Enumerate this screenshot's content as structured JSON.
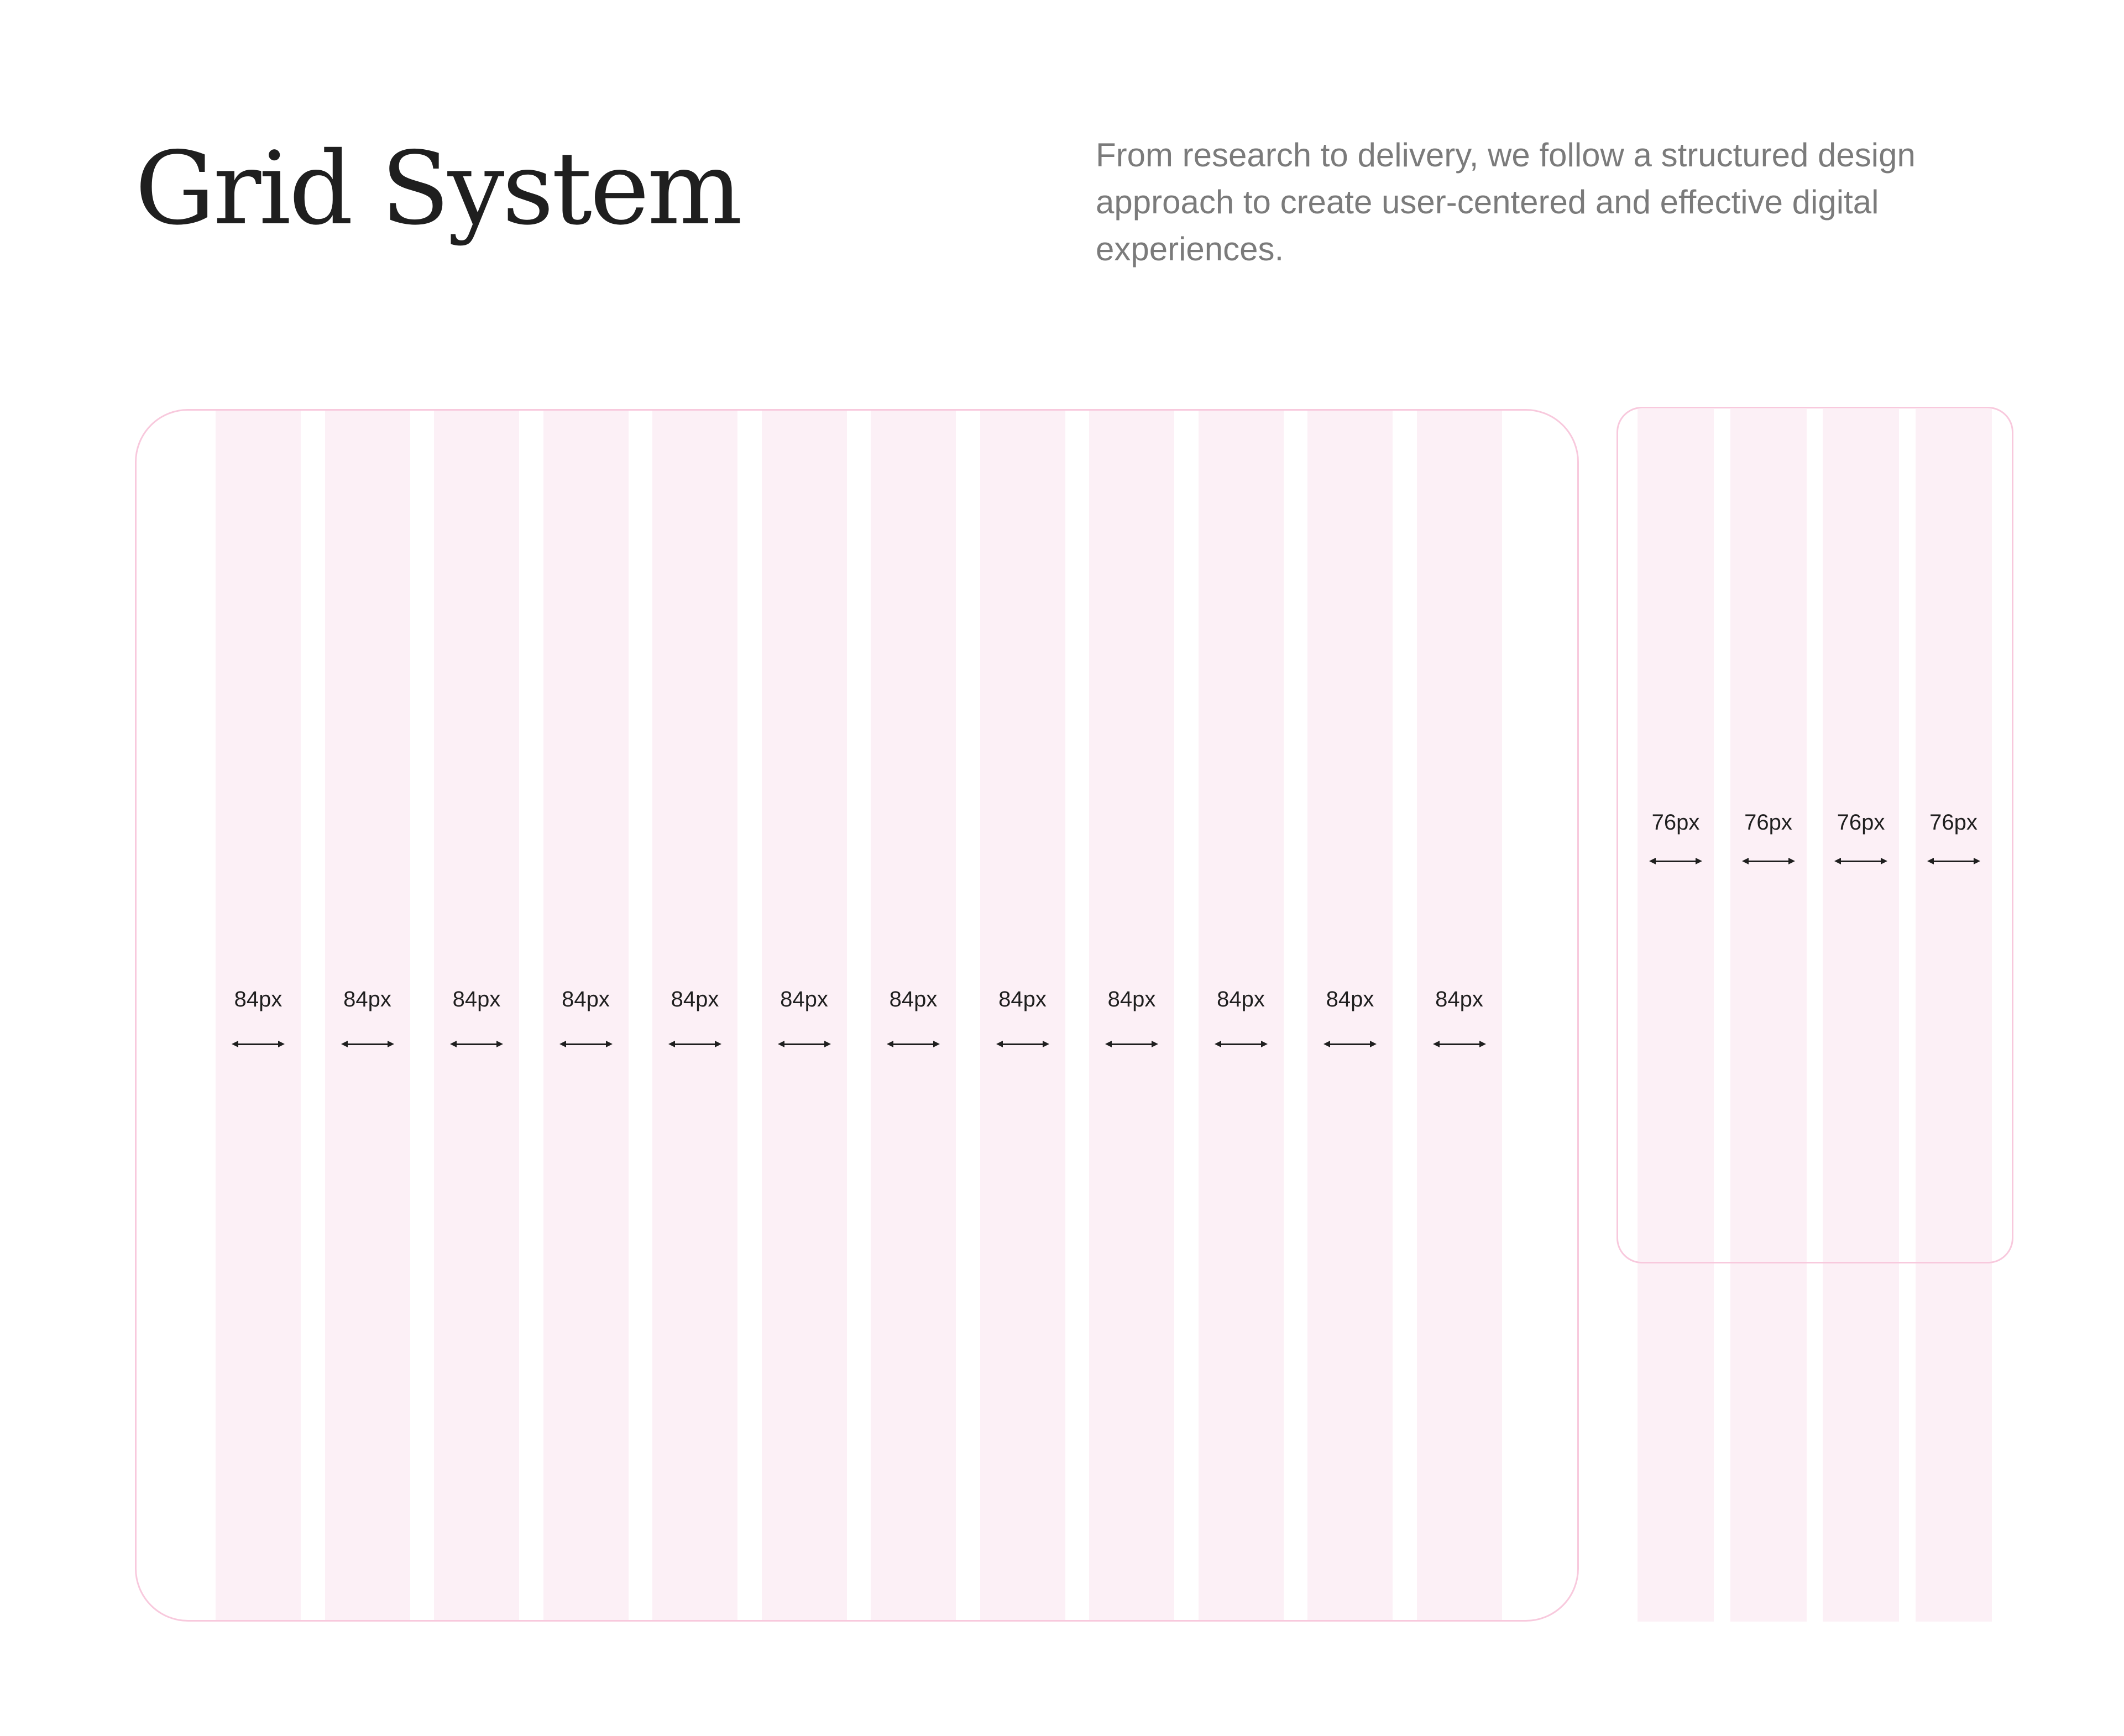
{
  "header": {
    "title": "Grid System",
    "description": "From research to delivery, we follow a structured design approach to create user-centered and effective digital experiences."
  },
  "desktop_grid": {
    "columns": [
      "84px",
      "84px",
      "84px",
      "84px",
      "84px",
      "84px",
      "84px",
      "84px",
      "84px",
      "84px",
      "84px",
      "84px"
    ]
  },
  "mobile_grid": {
    "columns": [
      "76px",
      "76px",
      "76px",
      "76px"
    ]
  },
  "colors": {
    "column_fill": "#fcf0f6",
    "frame_border": "#f8c9dd",
    "title": "#1f1f1f",
    "description": "#7b7b7b"
  }
}
